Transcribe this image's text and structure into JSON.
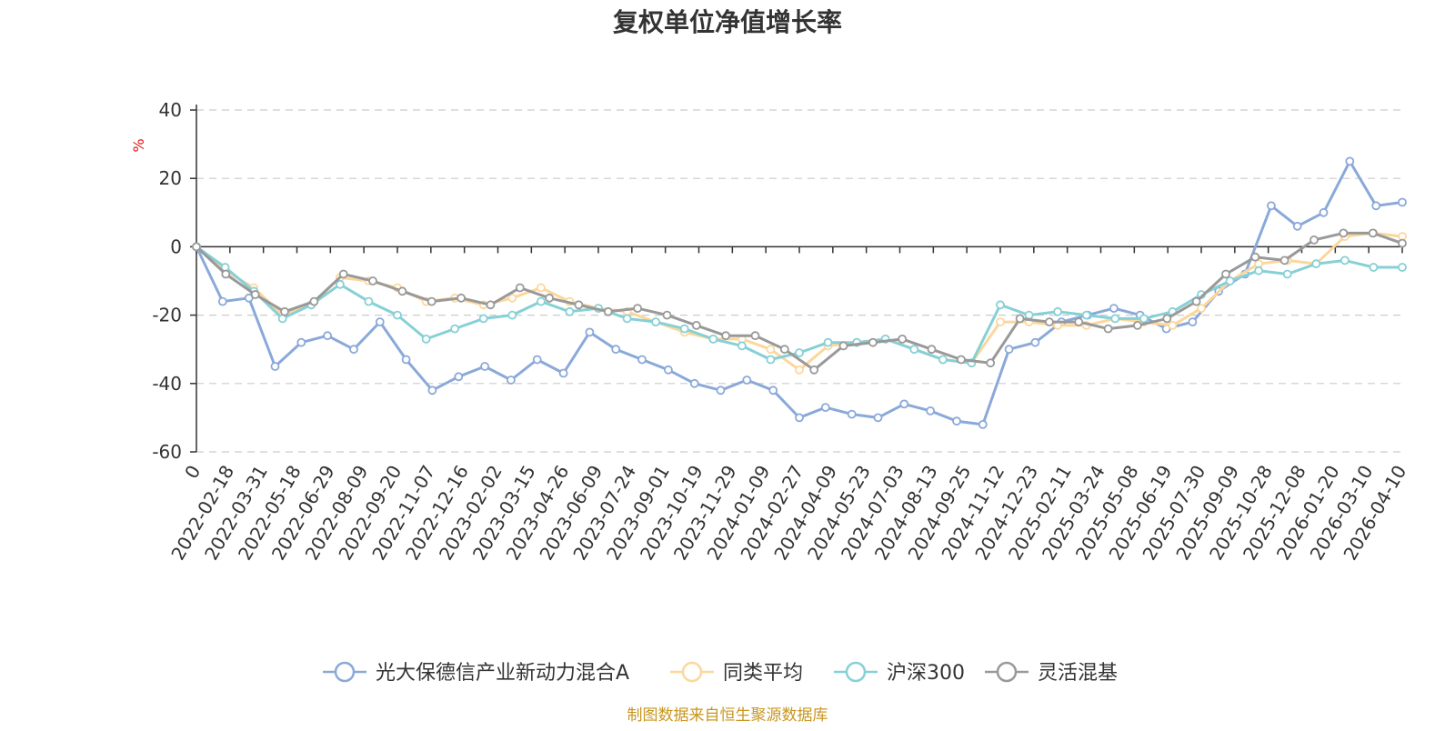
{
  "chart_data": {
    "type": "line",
    "title": "复权单位净值增长率",
    "ylabel": "%",
    "ylim": [
      -60,
      40
    ],
    "yticks": [
      "40",
      "20",
      "0",
      "-20",
      "-40",
      "-60"
    ],
    "yticks_values": [
      40,
      20,
      0,
      -20,
      -40,
      -60
    ],
    "grid": true,
    "legend_position": "bottom",
    "x_ticks": [
      "0",
      "2022-02-18",
      "2022-03-31",
      "2022-05-18",
      "2022-06-29",
      "2022-08-09",
      "2022-09-20",
      "2022-11-07",
      "2022-12-16",
      "2023-02-02",
      "2023-03-15",
      "2023-04-26",
      "2023-06-09",
      "2023-07-24",
      "2023-09-01",
      "2023-10-19",
      "2023-11-29",
      "2024-01-09",
      "2024-02-27",
      "2024-04-09",
      "2024-05-23",
      "2024-07-03",
      "2024-08-13",
      "2024-09-25",
      "2024-11-12",
      "2024-12-23",
      "2025-02-11",
      "2025-03-24",
      "2025-05-08",
      "2025-06-19",
      "2025-07-30",
      "2025-09-09",
      "2025-10-28",
      "2025-12-08",
      "2026-01-20",
      "2026-03-10",
      "2026-04-10"
    ],
    "series": [
      {
        "name": "光大保德信产业新动力混合A",
        "color": "#8aa9d9",
        "values": [
          0,
          -16,
          -15,
          -35,
          -28,
          -26,
          -30,
          -22,
          -33,
          -42,
          -38,
          -35,
          -39,
          -33,
          -37,
          -25,
          -30,
          -33,
          -36,
          -40,
          -42,
          -39,
          -42,
          -50,
          -47,
          -49,
          -50,
          -46,
          -48,
          -51,
          -52,
          -30,
          -28,
          -22,
          -20,
          -18,
          -20,
          -24,
          -22,
          -13,
          -8,
          12,
          6,
          10,
          25,
          12,
          13
        ]
      },
      {
        "name": "同类平均",
        "color": "#fcd79c",
        "values": [
          0,
          -7,
          -12,
          -20,
          -17,
          -9,
          -10,
          -12,
          -16,
          -15,
          -17,
          -15,
          -12,
          -16,
          -18,
          -19,
          -22,
          -25,
          -27,
          -27,
          -30,
          -36,
          -29,
          -28,
          -27,
          -30,
          -33,
          -34,
          -22,
          -22,
          -23,
          -23,
          -21,
          -22,
          -23,
          -18,
          -10,
          -5,
          -4,
          -5,
          3,
          4,
          3
        ]
      },
      {
        "name": "沪深300",
        "color": "#86d0d6",
        "values": [
          0,
          -6,
          -13,
          -21,
          -17,
          -11,
          -16,
          -20,
          -27,
          -24,
          -21,
          -20,
          -16,
          -19,
          -18,
          -21,
          -22,
          -24,
          -27,
          -29,
          -33,
          -31,
          -28,
          -28,
          -27,
          -30,
          -33,
          -34,
          -17,
          -20,
          -19,
          -20,
          -21,
          -21,
          -19,
          -14,
          -10,
          -7,
          -8,
          -5,
          -4,
          -6,
          -6
        ]
      },
      {
        "name": "灵活混基",
        "color": "#999999",
        "values": [
          0,
          -8,
          -14,
          -19,
          -16,
          -8,
          -10,
          -13,
          -16,
          -15,
          -17,
          -12,
          -15,
          -17,
          -19,
          -18,
          -20,
          -23,
          -26,
          -26,
          -30,
          -36,
          -29,
          -28,
          -27,
          -30,
          -33,
          -34,
          -21,
          -22,
          -22,
          -24,
          -23,
          -21,
          -16,
          -8,
          -3,
          -4,
          2,
          4,
          4,
          1
        ]
      }
    ]
  },
  "legend": {
    "items": [
      "光大保德信产业新动力混合A",
      "同类平均",
      "沪深300",
      "灵活混基"
    ]
  },
  "source_text": "制图数据来自恒生聚源数据库"
}
